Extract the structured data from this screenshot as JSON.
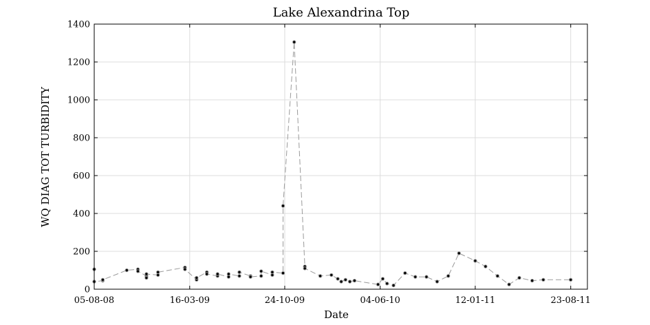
{
  "chart_data": {
    "type": "line",
    "title": "Lake Alexandrina Top",
    "xlabel": "Date",
    "ylabel": "WQ DIAG TOT TURBIDITY",
    "x_ticks": [
      "05-08-08",
      "16-03-09",
      "24-10-09",
      "04-06-10",
      "12-01-11",
      "23-08-11"
    ],
    "xlim": [
      "2008-08-05",
      "2011-10-01"
    ],
    "ylim": [
      0,
      1400
    ],
    "y_ticks": [
      0,
      200,
      400,
      600,
      800,
      1000,
      1200,
      1400
    ],
    "grid": true,
    "series": [
      {
        "x": [
          "2008-08-05",
          "2008-08-05",
          "2008-08-25",
          "2008-08-25",
          "2008-10-20",
          "2008-11-15",
          "2008-11-15",
          "2008-12-05",
          "2008-12-05",
          "2008-12-05",
          "2009-01-01",
          "2009-01-01",
          "2009-03-05",
          "2009-03-05",
          "2009-04-01",
          "2009-04-01",
          "2009-04-25",
          "2009-04-25",
          "2009-05-20",
          "2009-05-20",
          "2009-06-15",
          "2009-06-15",
          "2009-07-10",
          "2009-07-10",
          "2009-08-05",
          "2009-08-05",
          "2009-08-30",
          "2009-08-30",
          "2009-09-25",
          "2009-09-25",
          "2009-10-20",
          "2009-10-20",
          "2009-11-15",
          "2009-12-10",
          "2009-12-10",
          "2010-01-15",
          "2010-02-10",
          "2010-02-25",
          "2010-03-05",
          "2010-03-15",
          "2010-03-25",
          "2010-04-05",
          "2010-05-30",
          "2010-06-10",
          "2010-06-20",
          "2010-07-05",
          "2010-08-01",
          "2010-08-25",
          "2010-09-20",
          "2010-10-15",
          "2010-11-10",
          "2010-12-05",
          "2011-01-12",
          "2011-02-05",
          "2011-03-05",
          "2011-04-01",
          "2011-04-25",
          "2011-05-25",
          "2011-06-20",
          "2011-08-23"
        ],
        "y": [
          105,
          40,
          45,
          50,
          100,
          105,
          95,
          70,
          60,
          80,
          75,
          90,
          115,
          105,
          50,
          60,
          90,
          80,
          70,
          80,
          65,
          80,
          70,
          90,
          70,
          65,
          70,
          95,
          75,
          90,
          85,
          440,
          1305,
          120,
          110,
          70,
          75,
          55,
          40,
          50,
          40,
          45,
          25,
          55,
          30,
          20,
          85,
          65,
          65,
          40,
          70,
          190,
          150,
          120,
          70,
          25,
          60,
          45,
          50,
          50
        ]
      }
    ]
  }
}
